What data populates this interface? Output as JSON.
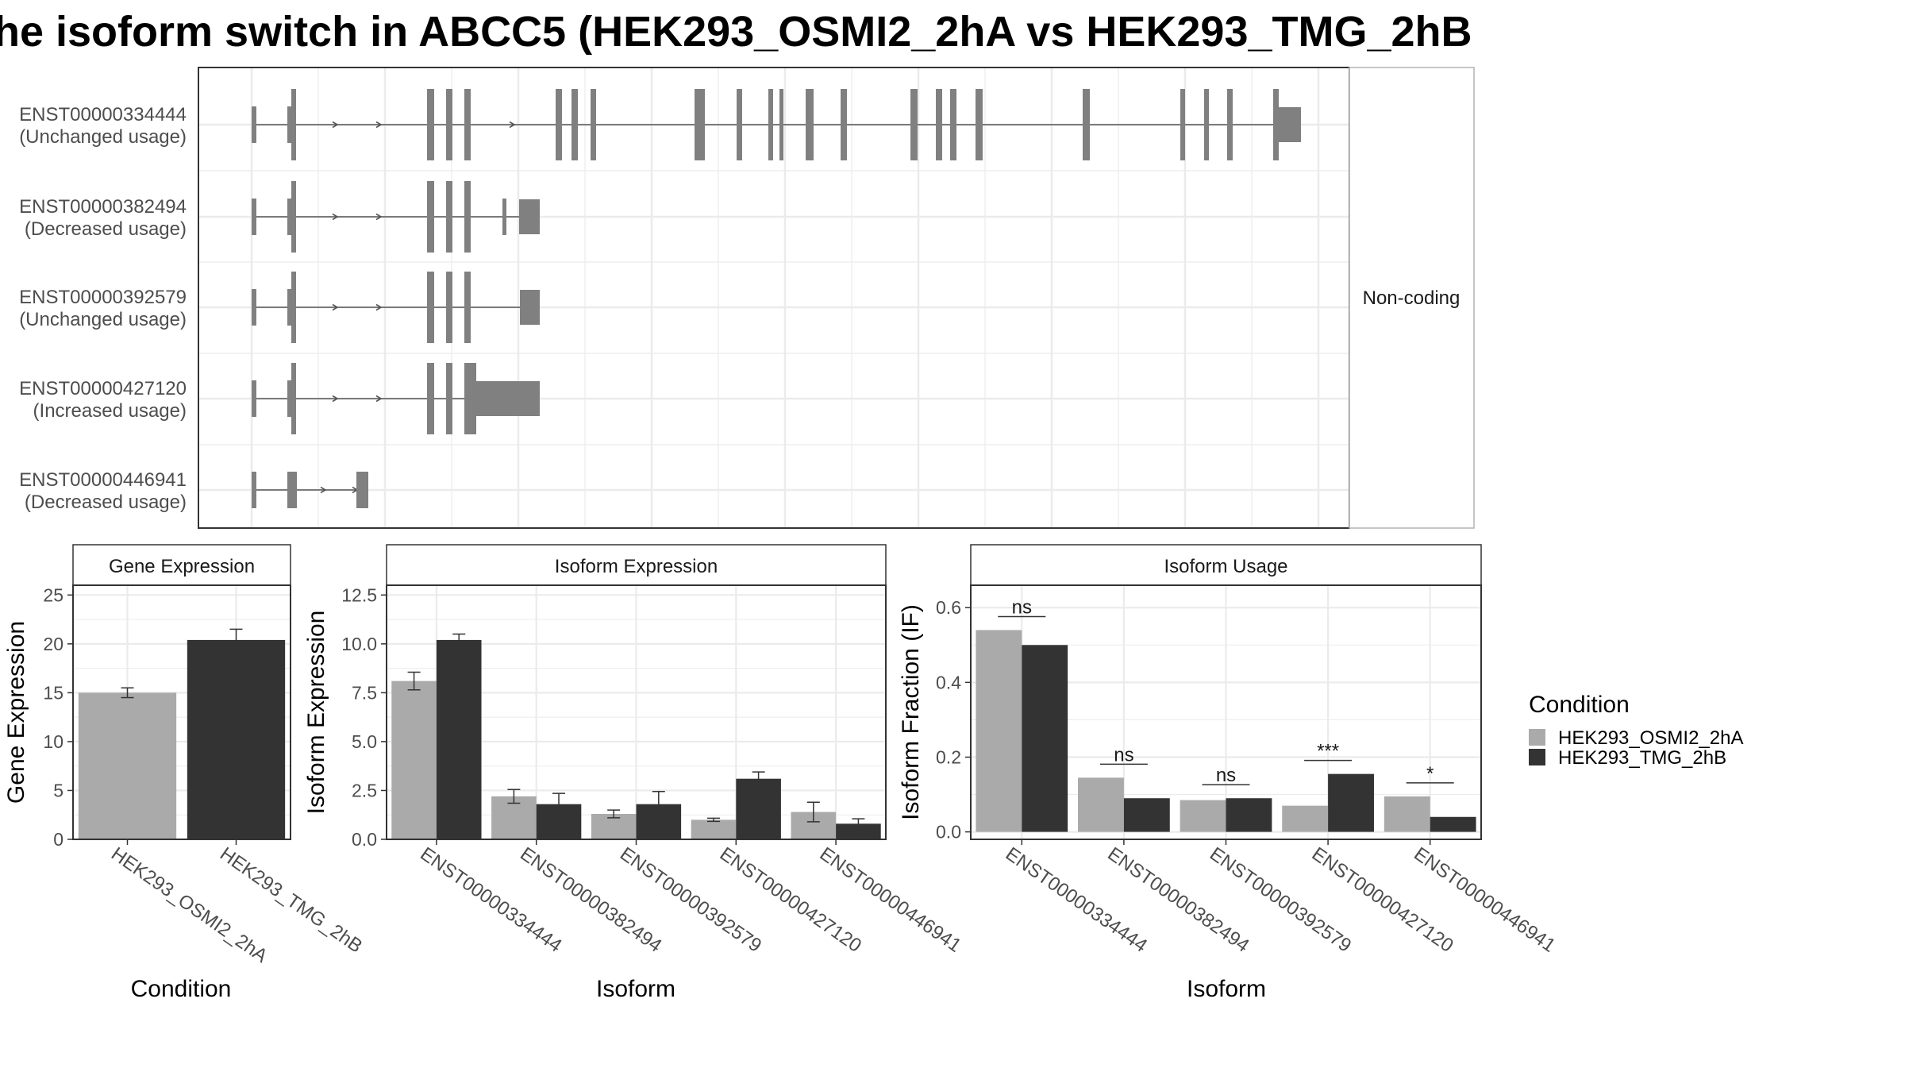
{
  "title": "he isoform switch in ABCC5 (HEK293_OSMI2_2hA vs HEK293_TMG_2hB",
  "colors": {
    "condition_a": "#aaaaaa",
    "condition_b": "#333333",
    "exon": "#808080",
    "grid": "#ebebeb",
    "frame": "#333333",
    "strip": "#f2f2f2"
  },
  "structure_panel": {
    "strip_label": "Non-coding",
    "transcripts": [
      {
        "id": "ENST00000334444",
        "status": "(Unchanged usage)"
      },
      {
        "id": "ENST00000382494",
        "status": "(Decreased usage)"
      },
      {
        "id": "ENST00000392579",
        "status": "(Unchanged usage)"
      },
      {
        "id": "ENST00000427120",
        "status": "(Increased usage)"
      },
      {
        "id": "ENST00000446941",
        "status": "(Decreased usage)"
      }
    ]
  },
  "legend": {
    "title": "Condition",
    "items": [
      "HEK293_OSMI2_2hA",
      "HEK293_TMG_2hB"
    ]
  },
  "chart_data": [
    {
      "type": "bar",
      "title": "Gene Expression",
      "xlabel": "Condition",
      "ylabel": "Gene Expression",
      "ylim": [
        0,
        26
      ],
      "yticks": [
        "0",
        "5",
        "10",
        "15",
        "20",
        "25"
      ],
      "categories": [
        "HEK293_OSMI2_2hA",
        "HEK293_TMG_2hB"
      ],
      "values": [
        15.0,
        20.4
      ],
      "errors": [
        0.5,
        1.1
      ]
    },
    {
      "type": "bar",
      "title": "Isoform Expression",
      "xlabel": "Isoform",
      "ylabel": "Isoform Expression",
      "ylim": [
        0,
        13
      ],
      "yticks": [
        "0.0",
        "2.5",
        "5.0",
        "7.5",
        "10.0",
        "12.5"
      ],
      "categories": [
        "ENST00000334444",
        "ENST00000382494",
        "ENST00000392579",
        "ENST00000427120",
        "ENST00000446941"
      ],
      "series": [
        {
          "name": "HEK293_OSMI2_2hA",
          "values": [
            8.1,
            2.2,
            1.3,
            1.0,
            1.4
          ],
          "errors": [
            0.45,
            0.35,
            0.2,
            0.08,
            0.5
          ]
        },
        {
          "name": "HEK293_TMG_2hB",
          "values": [
            10.2,
            1.8,
            1.8,
            3.1,
            0.8
          ],
          "errors": [
            0.3,
            0.55,
            0.65,
            0.35,
            0.25
          ]
        }
      ]
    },
    {
      "type": "bar",
      "title": "Isoform Usage",
      "xlabel": "Isoform",
      "ylabel": "Isoform Fraction (IF)",
      "ylim": [
        -0.02,
        0.66
      ],
      "yticks": [
        "0.0",
        "0.2",
        "0.4",
        "0.6"
      ],
      "categories": [
        "ENST00000334444",
        "ENST00000382494",
        "ENST00000392579",
        "ENST00000427120",
        "ENST00000446941"
      ],
      "series": [
        {
          "name": "HEK293_OSMI2_2hA",
          "values": [
            0.54,
            0.145,
            0.085,
            0.07,
            0.095
          ]
        },
        {
          "name": "HEK293_TMG_2hB",
          "values": [
            0.5,
            0.09,
            0.09,
            0.155,
            0.04
          ]
        }
      ],
      "significance": [
        "ns",
        "ns",
        "ns",
        "***",
        "*"
      ]
    }
  ]
}
